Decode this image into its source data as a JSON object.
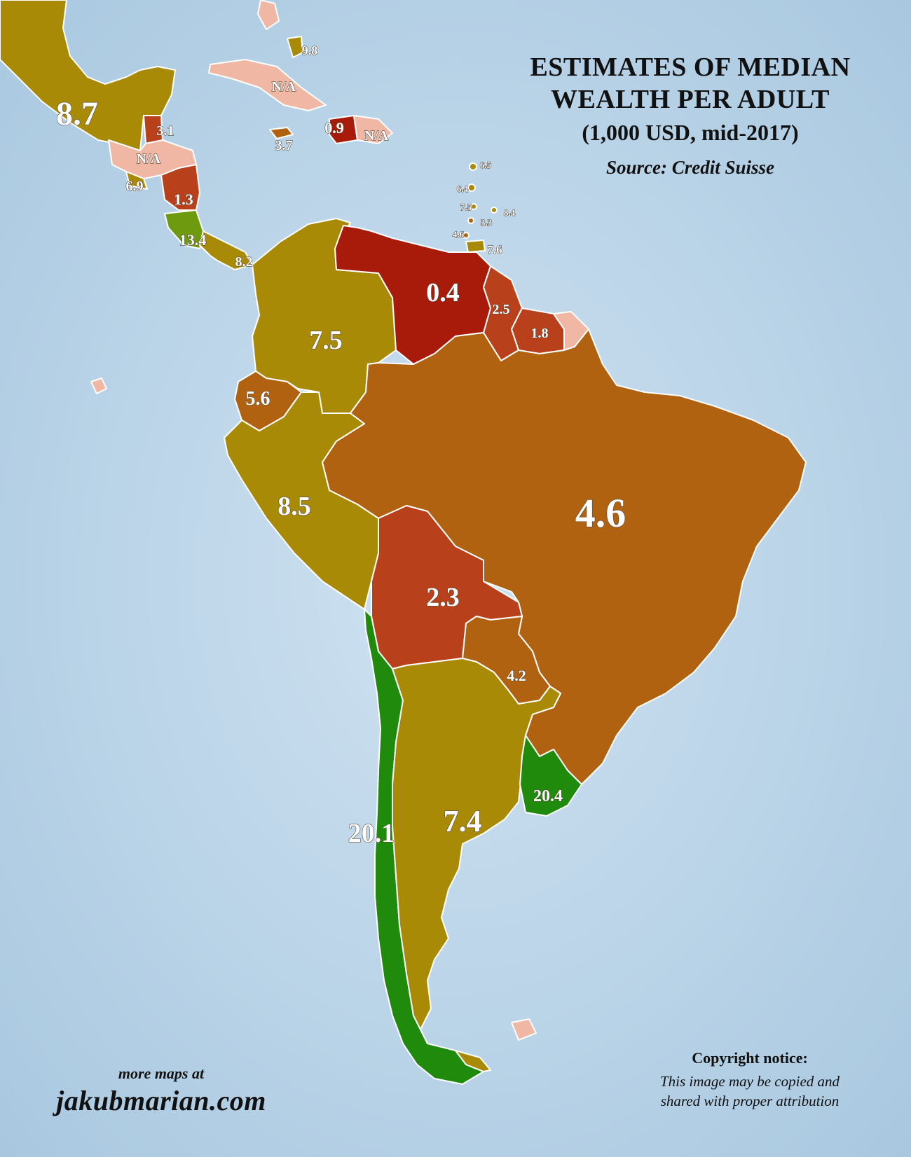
{
  "title": {
    "line1": "ESTIMATES OF MEDIAN",
    "line2": "WEALTH PER ADULT",
    "line3": "(1,000 USD, mid-2017)",
    "source": "Source: Credit Suisse"
  },
  "credit": {
    "line1": "more maps at",
    "site": "jakubmarian.com"
  },
  "copyright": {
    "heading": "Copyright notice:",
    "line1": "This image may be copied and",
    "line2": "shared with proper attribution"
  },
  "colors": {
    "sea": "#bcd6ea",
    "na": "#f0b8a4",
    "very_low": "#a81a0a",
    "low": "#b8401a",
    "mid_low": "#b06210",
    "mid": "#a88a06",
    "high": "#6e9a10",
    "very_high": "#1f8a0c"
  },
  "regions": [
    {
      "id": "mexico",
      "value": "8.7"
    },
    {
      "id": "belize",
      "value": "3.1"
    },
    {
      "id": "honduras-guatemala",
      "value": "N/A"
    },
    {
      "id": "el-salvador",
      "value": "6.9"
    },
    {
      "id": "nicaragua",
      "value": "1.3"
    },
    {
      "id": "costa-rica",
      "value": "13.4"
    },
    {
      "id": "panama",
      "value": "8.2"
    },
    {
      "id": "bahamas",
      "value": "9.8"
    },
    {
      "id": "cuba",
      "value": "N/A"
    },
    {
      "id": "jamaica",
      "value": "3.7"
    },
    {
      "id": "haiti",
      "value": "0.9"
    },
    {
      "id": "dominican-republic",
      "value": "N/A"
    },
    {
      "id": "antigua",
      "value": "6.5"
    },
    {
      "id": "dominica",
      "value": "6.4"
    },
    {
      "id": "st-lucia",
      "value": "7.5"
    },
    {
      "id": "barbados",
      "value": "8.4"
    },
    {
      "id": "st-vincent",
      "value": "3.3"
    },
    {
      "id": "grenada",
      "value": "4.6"
    },
    {
      "id": "trinidad-tobago",
      "value": "7.6"
    },
    {
      "id": "venezuela",
      "value": "0.4"
    },
    {
      "id": "guyana",
      "value": "2.5"
    },
    {
      "id": "suriname",
      "value": "1.8"
    },
    {
      "id": "colombia",
      "value": "7.5"
    },
    {
      "id": "ecuador",
      "value": "5.6"
    },
    {
      "id": "peru",
      "value": "8.5"
    },
    {
      "id": "brazil",
      "value": "4.6"
    },
    {
      "id": "bolivia",
      "value": "2.3"
    },
    {
      "id": "paraguay",
      "value": "4.2"
    },
    {
      "id": "chile",
      "value": "20.1"
    },
    {
      "id": "argentina",
      "value": "7.4"
    },
    {
      "id": "uruguay",
      "value": "20.4"
    }
  ]
}
